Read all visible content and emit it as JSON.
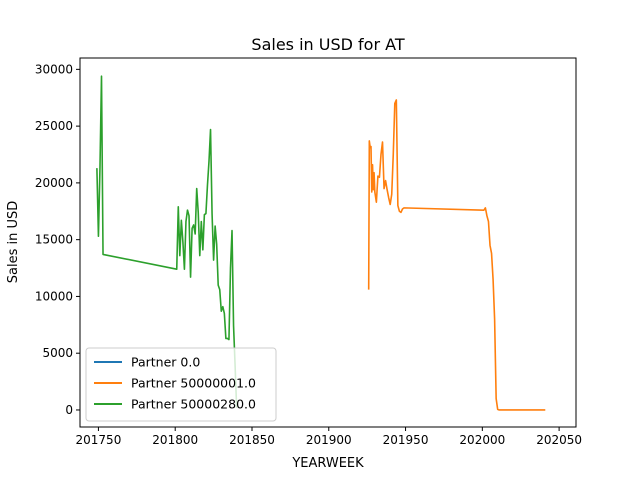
{
  "chart_data": {
    "type": "line",
    "title": "Sales in USD for AT",
    "xlabel": "YEARWEEK",
    "ylabel": "Sales in USD",
    "xlim": [
      201738,
      202061
    ],
    "ylim": [
      -1500,
      31000
    ],
    "xticks": [
      201750,
      201800,
      201850,
      201900,
      201950,
      202000,
      202050
    ],
    "yticks": [
      0,
      5000,
      10000,
      15000,
      20000,
      25000,
      30000
    ],
    "grid": false,
    "legend_position": "lower-left",
    "series": [
      {
        "name": "Partner 0.0",
        "color": "#1f77b4",
        "points": []
      },
      {
        "name": "Partner 50000001.0",
        "color": "#ff7f0e",
        "points": [
          [
            201926,
            10600
          ],
          [
            201926.4,
            23700
          ],
          [
            201927,
            23100
          ],
          [
            201927.5,
            23200
          ],
          [
            201928,
            19200
          ],
          [
            201928.5,
            21600
          ],
          [
            201929,
            19400
          ],
          [
            201929.5,
            20900
          ],
          [
            201930,
            19200
          ],
          [
            201931,
            18300
          ],
          [
            201932,
            20600
          ],
          [
            201933,
            20500
          ],
          [
            201934,
            22500
          ],
          [
            201935,
            23600
          ],
          [
            201936,
            19500
          ],
          [
            201937,
            20200
          ],
          [
            201938,
            19400
          ],
          [
            201939,
            18700
          ],
          [
            201940,
            18100
          ],
          [
            201941,
            19000
          ],
          [
            201942,
            22500
          ],
          [
            201943,
            27000
          ],
          [
            201944,
            27300
          ],
          [
            201945,
            18000
          ],
          [
            201946,
            17500
          ],
          [
            201947,
            17400
          ],
          [
            201948,
            17700
          ],
          [
            201949,
            17800
          ],
          [
            202001,
            17600
          ],
          [
            202002,
            17800
          ],
          [
            202003,
            17100
          ],
          [
            202004,
            16600
          ],
          [
            202005,
            14500
          ],
          [
            202006,
            13800
          ],
          [
            202007,
            11500
          ],
          [
            202008,
            8000
          ],
          [
            202009,
            1000
          ],
          [
            202010,
            50
          ],
          [
            202011,
            0
          ],
          [
            202020,
            0
          ],
          [
            202030,
            0
          ],
          [
            202041,
            0
          ]
        ]
      },
      {
        "name": "Partner 50000280.0",
        "color": "#2ca02c",
        "points": [
          [
            201749,
            21300
          ],
          [
            201750,
            15300
          ],
          [
            201751,
            21300
          ],
          [
            201752,
            29400
          ],
          [
            201753,
            13700
          ],
          [
            201801,
            12400
          ],
          [
            201802,
            17900
          ],
          [
            201803,
            13600
          ],
          [
            201804,
            16700
          ],
          [
            201805,
            14800
          ],
          [
            201806,
            12400
          ],
          [
            201807,
            16600
          ],
          [
            201808,
            17600
          ],
          [
            201809,
            17100
          ],
          [
            201810,
            11700
          ],
          [
            201811,
            16000
          ],
          [
            201812,
            16300
          ],
          [
            201813,
            15500
          ],
          [
            201814,
            19500
          ],
          [
            201815,
            17400
          ],
          [
            201816,
            13600
          ],
          [
            201817,
            16600
          ],
          [
            201818,
            14100
          ],
          [
            201819,
            17200
          ],
          [
            201820,
            17300
          ],
          [
            201821,
            19800
          ],
          [
            201822,
            21900
          ],
          [
            201823,
            24700
          ],
          [
            201824,
            17300
          ],
          [
            201825,
            13200
          ],
          [
            201826,
            16200
          ],
          [
            201827,
            14600
          ],
          [
            201828,
            11000
          ],
          [
            201829,
            10600
          ],
          [
            201830,
            8700
          ],
          [
            201831,
            9100
          ],
          [
            201832,
            8500
          ],
          [
            201833,
            6300
          ],
          [
            201834,
            6300
          ],
          [
            201835,
            6200
          ],
          [
            201836,
            12500
          ],
          [
            201837,
            15800
          ],
          [
            201838,
            7400
          ],
          [
            201839,
            3900
          ],
          [
            201840,
            200
          ]
        ]
      }
    ]
  }
}
